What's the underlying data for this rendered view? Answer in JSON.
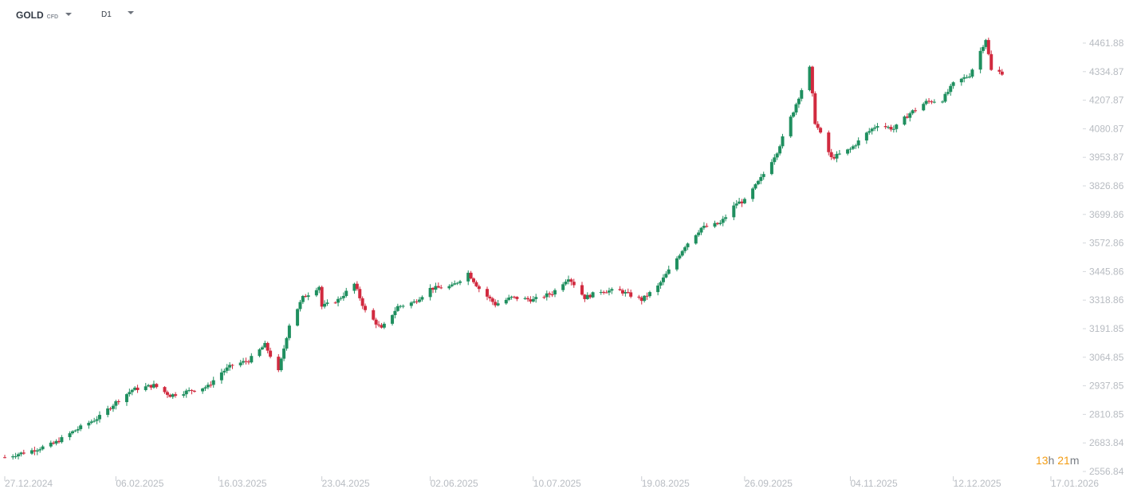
{
  "header": {
    "symbol": "GOLD",
    "symbol_type": "CFD",
    "timeframe": "D1",
    "symbol_dropdown_icon": "caret-down-icon",
    "timeframe_dropdown_icon": "caret-down-icon"
  },
  "countdown": {
    "hours": "13",
    "hours_unit": "h",
    "minutes": "21",
    "minutes_unit": "m"
  },
  "colors": {
    "up": "#1f8f5f",
    "down": "#d12a3f",
    "axis_text": "#b8bcc2",
    "countdown_accent": "#f39c12"
  },
  "chart_data": {
    "type": "candlestick",
    "title": "",
    "interval": "D1",
    "y_ticks": [
      "4461.88",
      "4334.87",
      "4207.87",
      "4080.87",
      "3953.87",
      "3826.86",
      "3699.86",
      "3572.86",
      "3445.86",
      "3318.86",
      "3191.85",
      "3064.85",
      "2937.85",
      "2810.85",
      "2683.84",
      "2556.84"
    ],
    "ylim": [
      2556.84,
      4461.88
    ],
    "x_ticks": [
      "27.12.2024",
      "06.02.2025",
      "16.03.2025",
      "23.04.2025",
      "02.06.2025",
      "10.07.2025",
      "19.08.2025",
      "26.09.2025",
      "04.11.2025",
      "12.12.2025",
      "17.01.2026"
    ],
    "x_range": [
      "27.12.2024",
      "17.01.2026"
    ],
    "grid": false,
    "close_path": [
      [
        "27.12.2024",
        2620
      ],
      [
        "06.01.2025",
        2650
      ],
      [
        "14.01.2025",
        2680
      ],
      [
        "22.01.2025",
        2740
      ],
      [
        "31.01.2025",
        2800
      ],
      [
        "06.02.2025",
        2865
      ],
      [
        "12.02.2025",
        2920
      ],
      [
        "20.02.2025",
        2940
      ],
      [
        "26.02.2025",
        2895
      ],
      [
        "05.03.2025",
        2915
      ],
      [
        "12.03.2025",
        2935
      ],
      [
        "16.03.2025",
        2990
      ],
      [
        "21.03.2025",
        3030
      ],
      [
        "27.03.2025",
        3050
      ],
      [
        "02.04.2025",
        3120
      ],
      [
        "07.04.2025",
        3000
      ],
      [
        "11.04.2025",
        3210
      ],
      [
        "16.04.2025",
        3330
      ],
      [
        "22.04.2025",
        3380
      ],
      [
        "23.04.2025",
        3290
      ],
      [
        "29.04.2025",
        3320
      ],
      [
        "05.05.2025",
        3390
      ],
      [
        "09.05.2025",
        3270
      ],
      [
        "15.05.2025",
        3190
      ],
      [
        "21.05.2025",
        3290
      ],
      [
        "27.05.2025",
        3310
      ],
      [
        "02.06.2025",
        3370
      ],
      [
        "10.06.2025",
        3380
      ],
      [
        "16.06.2025",
        3440
      ],
      [
        "20.06.2025",
        3370
      ],
      [
        "26.06.2025",
        3300
      ],
      [
        "02.07.2025",
        3330
      ],
      [
        "10.07.2025",
        3320
      ],
      [
        "17.07.2025",
        3350
      ],
      [
        "23.07.2025",
        3420
      ],
      [
        "29.07.2025",
        3330
      ],
      [
        "04.08.2025",
        3360
      ],
      [
        "11.08.2025",
        3360
      ],
      [
        "19.08.2025",
        3320
      ],
      [
        "25.08.2025",
        3380
      ],
      [
        "29.08.2025",
        3450
      ],
      [
        "04.09.2025",
        3560
      ],
      [
        "10.09.2025",
        3640
      ],
      [
        "17.09.2025",
        3660
      ],
      [
        "23.09.2025",
        3750
      ],
      [
        "26.09.2025",
        3760
      ],
      [
        "02.10.2025",
        3860
      ],
      [
        "08.10.2025",
        3980
      ],
      [
        "14.10.2025",
        4160
      ],
      [
        "20.10.2025",
        4350
      ],
      [
        "22.10.2025",
        4110
      ],
      [
        "28.10.2025",
        3950
      ],
      [
        "04.11.2025",
        3990
      ],
      [
        "10.11.2025",
        4060
      ],
      [
        "14.11.2025",
        4100
      ],
      [
        "20.11.2025",
        4080
      ],
      [
        "26.11.2025",
        4150
      ],
      [
        "02.12.2025",
        4200
      ],
      [
        "08.12.2025",
        4210
      ],
      [
        "12.12.2025",
        4280
      ],
      [
        "18.12.2025",
        4320
      ],
      [
        "24.12.2025",
        4480
      ],
      [
        "26.12.2025",
        4340
      ],
      [
        "30.12.2025",
        4330
      ]
    ]
  }
}
